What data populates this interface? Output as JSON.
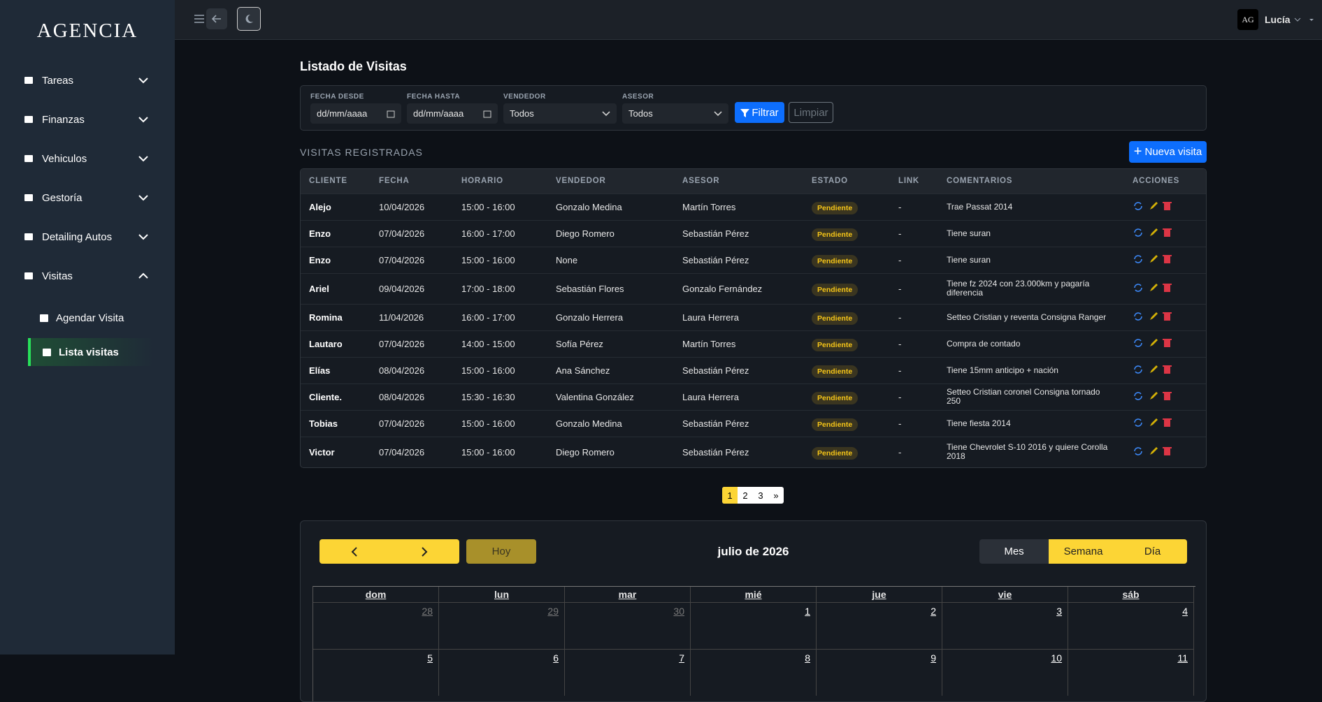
{
  "sidebar": {
    "brand": "AGENCIA",
    "menu": [
      {
        "label": "Tareas"
      },
      {
        "label": "Finanzas"
      },
      {
        "label": "Vehiculos"
      },
      {
        "label": "Gestoría"
      },
      {
        "label": "Detailing Autos"
      },
      {
        "label": "Visitas"
      }
    ],
    "submenu": [
      {
        "label": "Agendar Visita"
      },
      {
        "label": "Lista visitas"
      }
    ]
  },
  "topbar": {
    "avatar": "AG",
    "user": "Lucía"
  },
  "page": {
    "title": "Listado de Visitas",
    "filters": [
      {
        "label": "FECHA DESDE",
        "value": "dd/mm/aaaa"
      },
      {
        "label": "FECHA HASTA",
        "value": "dd/mm/aaaa"
      },
      {
        "label": "VENDEDOR",
        "value": "Todos"
      },
      {
        "label": "ASESOR",
        "value": "Todos"
      }
    ],
    "filter_button": "Filtrar",
    "clear_button": "Limpiar",
    "section_title": "VISITAS REGISTRADAS",
    "new_button": "Nueva visita"
  },
  "table": {
    "columns": [
      "CLIENTE",
      "FECHA",
      "HORARIO",
      "VENDEDOR",
      "ASESOR",
      "ESTADO",
      "LINK",
      "COMENTARIOS",
      "ACCIONES"
    ],
    "rows": [
      [
        "Alejo",
        "10/04/2026",
        "15:00 - 16:00",
        "Gonzalo Medina",
        "Martín Torres",
        "Pendiente",
        "-",
        "Trae Passat 2014"
      ],
      [
        "Enzo",
        "07/04/2026",
        "16:00 - 17:00",
        "Diego Romero",
        "Sebastián Pérez",
        "Pendiente",
        "-",
        "Tiene suran"
      ],
      [
        "Enzo",
        "07/04/2026",
        "15:00 - 16:00",
        "None",
        "Sebastián Pérez",
        "Pendiente",
        "-",
        "Tiene suran"
      ],
      [
        "Ariel",
        "09/04/2026",
        "17:00 - 18:00",
        "Sebastián Flores",
        "Gonzalo Fernández",
        "Pendiente",
        "-",
        "Tiene fz 2024 con 23.000km y pagaría diferencia"
      ],
      [
        "Romina",
        "11/04/2026",
        "16:00 - 17:00",
        "Gonzalo Herrera",
        "Laura Herrera",
        "Pendiente",
        "-",
        "Setteo Cristian y reventa Consigna Ranger"
      ],
      [
        "Lautaro",
        "07/04/2026",
        "14:00 - 15:00",
        "Sofía Pérez",
        "Martín Torres",
        "Pendiente",
        "-",
        "Compra de contado"
      ],
      [
        "Elías",
        "08/04/2026",
        "15:00 - 16:00",
        "Ana Sánchez",
        "Sebastián Pérez",
        "Pendiente",
        "-",
        "Tiene 15mm anticipo + nación"
      ],
      [
        "Cliente.",
        "08/04/2026",
        "15:30 - 16:30",
        "Valentina González",
        "Laura Herrera",
        "Pendiente",
        "-",
        "Setteo Cristian coronel Consigna tornado 250"
      ],
      [
        "Tobias",
        "07/04/2026",
        "15:00 - 16:00",
        "Gonzalo Medina",
        "Sebastián Pérez",
        "Pendiente",
        "-",
        "Tiene fiesta 2014"
      ],
      [
        "Victor",
        "07/04/2026",
        "15:00 - 16:00",
        "Diego Romero",
        "Sebastián Pérez",
        "Pendiente",
        "-",
        "Tiene Chevrolet S-10 2016 y quiere Corolla 2018"
      ]
    ]
  },
  "pagination": [
    "1",
    "2",
    "3",
    "»"
  ],
  "calendar": {
    "today": "Hoy",
    "title": "julio de 2026",
    "views": [
      "Mes",
      "Semana",
      "Día"
    ],
    "weekdays": [
      "dom",
      "lun",
      "mar",
      "mié",
      "jue",
      "vie",
      "sáb"
    ],
    "weeks": [
      [
        "28",
        "29",
        "30",
        "1",
        "2",
        "3",
        "4"
      ],
      [
        "5",
        "6",
        "7",
        "8",
        "9",
        "10",
        "11"
      ]
    ]
  }
}
